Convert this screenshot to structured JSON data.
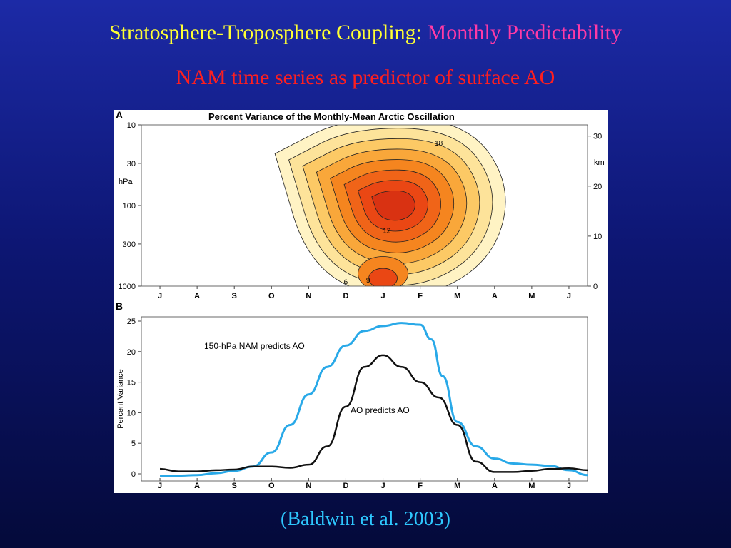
{
  "slide": {
    "title_part1": "Stratosphere-Troposphere Coupling: ",
    "title_part2": "Monthly Predictability",
    "subtitle": "NAM time series as predictor of surface AO",
    "citation": "(Baldwin et al. 2003)"
  },
  "colors": {
    "title_yellow": "#ffff33",
    "title_pink": "#ff3aa6",
    "subtitle_red": "#ff1f1f",
    "citation_cyan": "#2ec8ff",
    "nam_line": "#29a9e8",
    "ao_line": "#111111"
  },
  "chart_data": [
    {
      "panel_label": "A",
      "type": "heatmap",
      "title": "Percent Variance of the Monthly-Mean Arctic Oscillation",
      "x_categories": [
        "J",
        "A",
        "S",
        "O",
        "N",
        "D",
        "J",
        "F",
        "M",
        "A",
        "M",
        "J"
      ],
      "y_left_label": "hPa",
      "y_left_ticks": [
        "10",
        "30",
        "100",
        "300",
        "1000"
      ],
      "y_right_label": "km",
      "y_right_ticks": [
        "30",
        "20",
        "10",
        "0"
      ],
      "contour_labels": [
        "6",
        "9",
        "12",
        "18"
      ],
      "contour_levels": [
        3,
        6,
        9,
        12,
        15,
        18,
        21,
        24
      ],
      "fill_colors": [
        "#fff3c4",
        "#fde39a",
        "#fcc965",
        "#f9a73a",
        "#f5851f",
        "#f06418",
        "#ea4714",
        "#d93212"
      ]
    },
    {
      "panel_label": "B",
      "type": "line",
      "x_categories": [
        "J",
        "A",
        "S",
        "O",
        "N",
        "D",
        "J",
        "F",
        "M",
        "A",
        "M",
        "J"
      ],
      "ylabel": "Percent Variance",
      "ylim": [
        0,
        25
      ],
      "yticks": [
        0,
        5,
        10,
        15,
        20,
        25
      ],
      "series": [
        {
          "name": "150-hPa NAM predicts AO",
          "color": "#29a9e8",
          "x": [
            0.0,
            0.5,
            1.0,
            1.5,
            2.0,
            2.5,
            3.0,
            3.5,
            4.0,
            4.5,
            5.0,
            5.5,
            6.0,
            6.5,
            7.0,
            7.3,
            7.6,
            8.0,
            8.5,
            9.0,
            9.5,
            10.0,
            10.5,
            11.0,
            11.5
          ],
          "values": [
            -0.3,
            -0.3,
            -0.2,
            0.1,
            0.5,
            1.2,
            3.5,
            8.0,
            13.0,
            17.5,
            21.0,
            23.4,
            24.2,
            24.7,
            24.4,
            22.0,
            16.0,
            8.5,
            4.5,
            2.5,
            1.7,
            1.5,
            1.3,
            0.6,
            -0.2
          ]
        },
        {
          "name": "AO predicts AO",
          "color": "#111111",
          "x": [
            0.0,
            0.5,
            1.0,
            1.5,
            2.0,
            2.5,
            3.0,
            3.5,
            4.0,
            4.5,
            5.0,
            5.5,
            6.0,
            6.5,
            7.0,
            7.5,
            8.0,
            8.5,
            9.0,
            9.5,
            10.0,
            10.5,
            11.0,
            11.5
          ],
          "values": [
            0.8,
            0.4,
            0.4,
            0.6,
            0.7,
            1.2,
            1.2,
            1.0,
            1.5,
            4.5,
            11.0,
            17.5,
            19.4,
            17.5,
            15.0,
            12.5,
            8.0,
            2.0,
            0.3,
            0.3,
            0.5,
            0.8,
            0.9,
            0.6
          ]
        }
      ]
    }
  ]
}
